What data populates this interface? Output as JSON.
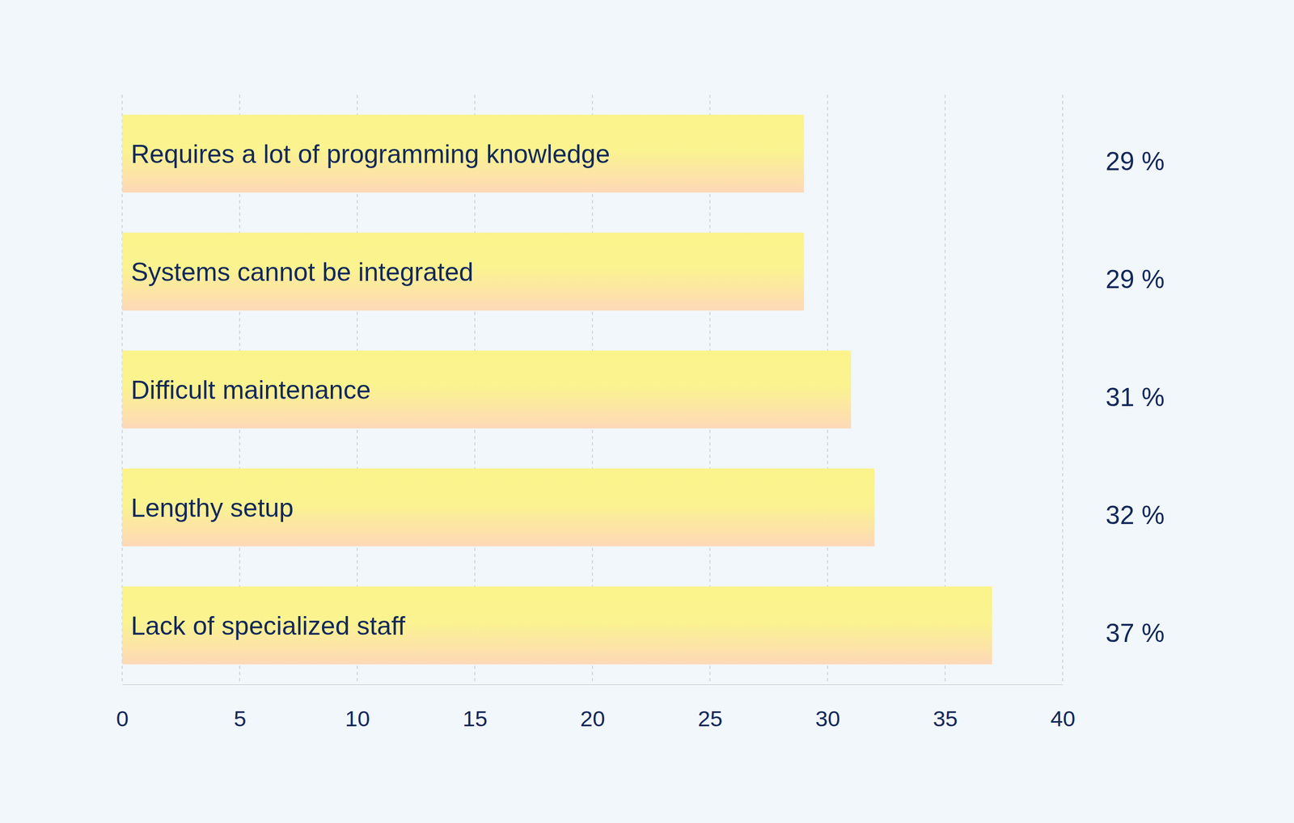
{
  "chart_data": {
    "type": "bar",
    "orientation": "horizontal",
    "categories": [
      "Requires a lot of programming knowledge",
      "Systems cannot be integrated",
      "Difficult maintenance",
      "Lengthy setup",
      "Lack of specialized staff"
    ],
    "values": [
      29,
      29,
      31,
      32,
      37
    ],
    "value_labels": [
      "29 %",
      "29 %",
      "31 %",
      "32 %",
      "37 %"
    ],
    "data_labels": true,
    "color": "#fbf38a",
    "xlim": [
      0,
      40
    ],
    "xticks": [
      0,
      5,
      10,
      15,
      20,
      25,
      30,
      35,
      40
    ],
    "grid": true
  }
}
